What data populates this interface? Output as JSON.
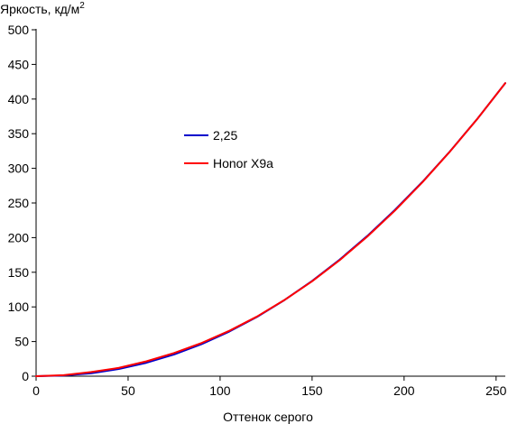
{
  "chart_data": {
    "type": "line",
    "title": "",
    "ylabel": "Яркость, кд/м",
    "ylabel_superscript": "2",
    "xlabel": "Оттенок серого",
    "xlim": [
      0,
      255
    ],
    "ylim": [
      0,
      500
    ],
    "xticks": [
      0,
      50,
      100,
      150,
      200,
      250
    ],
    "yticks": [
      0,
      50,
      100,
      150,
      200,
      250,
      300,
      350,
      400,
      450,
      500
    ],
    "grid": false,
    "legend_position": "center-left",
    "series": [
      {
        "name": "2,25",
        "color": "#0000cc",
        "x": [
          0,
          15,
          30,
          45,
          60,
          75,
          90,
          105,
          120,
          135,
          150,
          165,
          180,
          195,
          210,
          225,
          240,
          255
        ],
        "y": [
          0,
          0.9,
          4.2,
          10.4,
          19.4,
          31.4,
          46.3,
          64.4,
          85.5,
          109.9,
          137.5,
          168.3,
          202.4,
          239.9,
          280.6,
          324.7,
          372.1,
          423.0
        ]
      },
      {
        "name": "Honor X9a",
        "color": "#ff0000",
        "x": [
          0,
          15,
          30,
          45,
          60,
          75,
          90,
          105,
          120,
          135,
          150,
          165,
          180,
          195,
          210,
          225,
          240,
          255
        ],
        "y": [
          0,
          1.5,
          6.0,
          12.0,
          21.5,
          33.5,
          48.0,
          65.5,
          86.0,
          110.0,
          137.0,
          167.5,
          201.5,
          239.0,
          280.0,
          324.5,
          372.0,
          423.0
        ]
      }
    ]
  }
}
